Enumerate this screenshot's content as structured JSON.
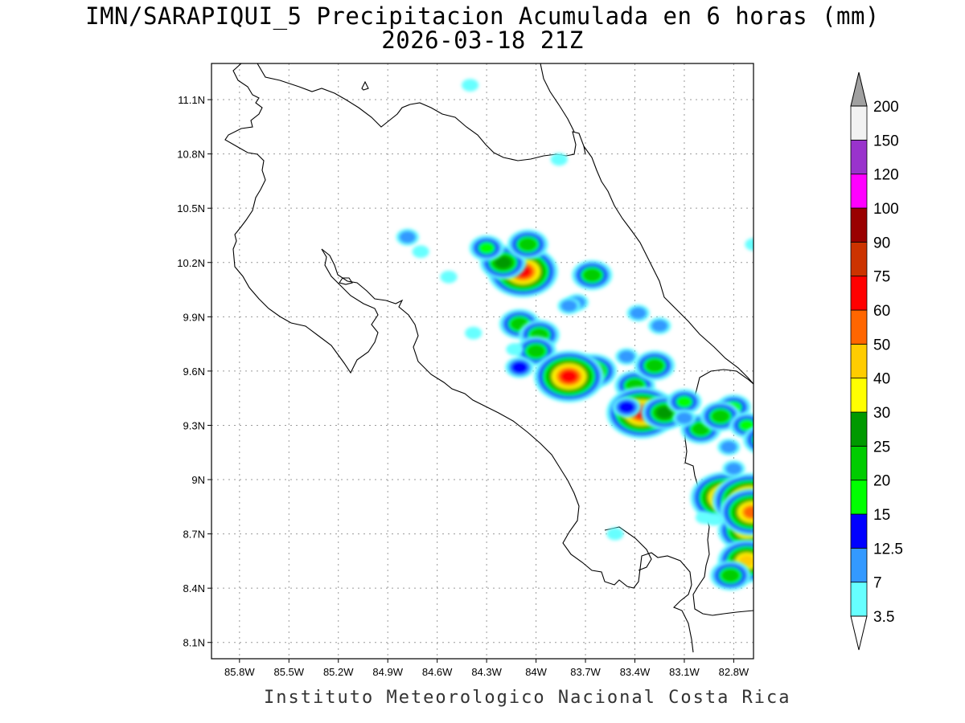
{
  "title": {
    "line1": "IMN/SARAPIQUI_5 Precipitacion Acumulada en 6 horas (mm)",
    "line2": "2026-03-18 21Z"
  },
  "footer": "Instituto Meteorologico Nacional Costa Rica",
  "map": {
    "lon_range": [
      -85.97,
      -82.68
    ],
    "lat_range": [
      8.01,
      11.3
    ],
    "x_ticks": [
      {
        "value": -85.8,
        "label": "85.8W"
      },
      {
        "value": -85.5,
        "label": "85.5W"
      },
      {
        "value": -85.2,
        "label": "85.2W"
      },
      {
        "value": -84.9,
        "label": "84.9W"
      },
      {
        "value": -84.6,
        "label": "84.6W"
      },
      {
        "value": -84.3,
        "label": "84.3W"
      },
      {
        "value": -84.0,
        "label": "84W"
      },
      {
        "value": -83.7,
        "label": "83.7W"
      },
      {
        "value": -83.4,
        "label": "83.4W"
      },
      {
        "value": -83.1,
        "label": "83.1W"
      },
      {
        "value": -82.8,
        "label": "82.8W"
      }
    ],
    "y_ticks": [
      {
        "value": 11.1,
        "label": "11.1N"
      },
      {
        "value": 10.8,
        "label": "10.8N"
      },
      {
        "value": 10.5,
        "label": "10.5N"
      },
      {
        "value": 10.2,
        "label": "10.2N"
      },
      {
        "value": 9.9,
        "label": "9.9N"
      },
      {
        "value": 9.6,
        "label": "9.6N"
      },
      {
        "value": 9.3,
        "label": "9.3N"
      },
      {
        "value": 9.0,
        "label": "9N"
      },
      {
        "value": 8.7,
        "label": "8.7N"
      },
      {
        "value": 8.4,
        "label": "8.4N"
      },
      {
        "value": 8.1,
        "label": "8.1N"
      }
    ],
    "grid": true
  },
  "colorbar": {
    "levels": [
      "3.5",
      "7",
      "12.5",
      "15",
      "20",
      "25",
      "30",
      "40",
      "50",
      "60",
      "75",
      "90",
      "100",
      "120",
      "150",
      "200"
    ],
    "colors": [
      "#66ffff",
      "#3399ff",
      "#0000ff",
      "#00ff00",
      "#00cc00",
      "#009900",
      "#ffff00",
      "#ffcc00",
      "#ff6600",
      "#ff0000",
      "#cc3300",
      "#990000",
      "#ff00ff",
      "#9933cc",
      "#f2f2f2",
      "#a0a0a0"
    ]
  },
  "precip_cells": [
    {
      "lon": -84.08,
      "lat": 10.15,
      "mm": 60
    },
    {
      "lon": -84.2,
      "lat": 10.2,
      "mm": 25
    },
    {
      "lon": -84.3,
      "lat": 10.28,
      "mm": 15
    },
    {
      "lon": -84.05,
      "lat": 10.3,
      "mm": 20
    },
    {
      "lon": -84.78,
      "lat": 10.34,
      "mm": 7
    },
    {
      "lon": -84.7,
      "lat": 10.26,
      "mm": 3.5
    },
    {
      "lon": -84.53,
      "lat": 10.12,
      "mm": 3.5
    },
    {
      "lon": -83.66,
      "lat": 10.13,
      "mm": 20
    },
    {
      "lon": -83.75,
      "lat": 9.98,
      "mm": 7
    },
    {
      "lon": -83.8,
      "lat": 9.96,
      "mm": 7
    },
    {
      "lon": -84.1,
      "lat": 9.86,
      "mm": 20
    },
    {
      "lon": -83.98,
      "lat": 9.8,
      "mm": 20
    },
    {
      "lon": -84.38,
      "lat": 9.81,
      "mm": 3.5
    },
    {
      "lon": -83.38,
      "lat": 9.92,
      "mm": 7
    },
    {
      "lon": -83.25,
      "lat": 9.85,
      "mm": 7
    },
    {
      "lon": -84.0,
      "lat": 9.71,
      "mm": 20
    },
    {
      "lon": -84.13,
      "lat": 9.72,
      "mm": 3.5
    },
    {
      "lon": -84.1,
      "lat": 9.62,
      "mm": 12.5
    },
    {
      "lon": -83.65,
      "lat": 9.6,
      "mm": 25
    },
    {
      "lon": -83.8,
      "lat": 9.57,
      "mm": 60
    },
    {
      "lon": -83.45,
      "lat": 9.68,
      "mm": 7
    },
    {
      "lon": -83.4,
      "lat": 9.52,
      "mm": 20
    },
    {
      "lon": -83.28,
      "lat": 9.63,
      "mm": 20
    },
    {
      "lon": -83.36,
      "lat": 9.37,
      "mm": 60
    },
    {
      "lon": -83.22,
      "lat": 9.37,
      "mm": 25
    },
    {
      "lon": -83.45,
      "lat": 9.4,
      "mm": 12.5
    },
    {
      "lon": -83.1,
      "lat": 9.43,
      "mm": 15
    },
    {
      "lon": -83.0,
      "lat": 9.28,
      "mm": 20
    },
    {
      "lon": -83.1,
      "lat": 9.34,
      "mm": 7
    },
    {
      "lon": -82.8,
      "lat": 9.4,
      "mm": 15
    },
    {
      "lon": -82.88,
      "lat": 9.35,
      "mm": 20
    },
    {
      "lon": -82.72,
      "lat": 9.3,
      "mm": 15
    },
    {
      "lon": -82.85,
      "lat": 8.9,
      "mm": 60
    },
    {
      "lon": -82.7,
      "lat": 8.88,
      "mm": 75
    },
    {
      "lon": -82.72,
      "lat": 8.72,
      "mm": 40
    },
    {
      "lon": -82.72,
      "lat": 8.55,
      "mm": 40
    },
    {
      "lon": -82.69,
      "lat": 8.82,
      "mm": 50
    },
    {
      "lon": -82.62,
      "lat": 9.22,
      "mm": 20
    },
    {
      "lon": -82.83,
      "lat": 9.18,
      "mm": 7
    },
    {
      "lon": -82.8,
      "lat": 9.06,
      "mm": 7
    },
    {
      "lon": -82.82,
      "lat": 8.47,
      "mm": 20
    },
    {
      "lon": -82.98,
      "lat": 8.79,
      "mm": 3.5
    },
    {
      "lon": -83.52,
      "lat": 8.7,
      "mm": 3.5
    },
    {
      "lon": -82.92,
      "lat": 8.78,
      "mm": 3.5
    },
    {
      "lon": -84.4,
      "lat": 11.18,
      "mm": 3.5
    },
    {
      "lon": -83.86,
      "lat": 10.77,
      "mm": 3.5
    },
    {
      "lon": -82.68,
      "lat": 10.3,
      "mm": 3.5
    }
  ]
}
